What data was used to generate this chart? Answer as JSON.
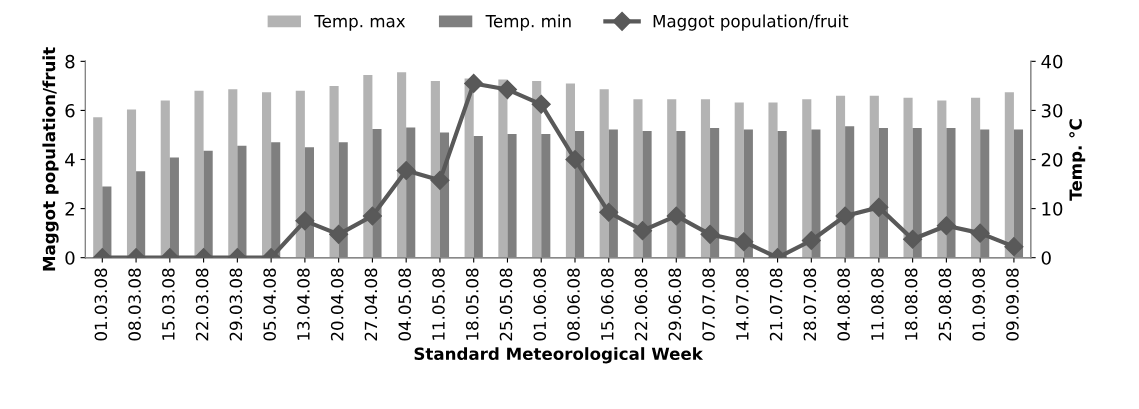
{
  "chart_data": {
    "type": "bar",
    "xlabel": "Standard Meteorological Week",
    "ylabel": "Maggot population/fruit",
    "y2label": "Temp. °C",
    "categories": [
      "01.03.08",
      "08.03.08",
      "15.03.08",
      "22.03.08",
      "29.03.08",
      "05.04.08",
      "13.04.08",
      "20.04.08",
      "27.04.08",
      "04.05.08",
      "11.05.08",
      "18.05.08",
      "25.05.08",
      "01.06.08",
      "08.06.08",
      "15.06.08",
      "22.06.08",
      "29.06.08",
      "07.07.08",
      "14.07.08",
      "21.07.08",
      "28.07.08",
      "04.08.08",
      "11.08.08",
      "18.08.08",
      "25.08.08",
      "01.09.08",
      "09.09.08"
    ],
    "series": [
      {
        "name": "Temp. max",
        "axis": "y2",
        "color": "#b3b3b3",
        "values": [
          28.6,
          30.2,
          32,
          34,
          34.3,
          33.7,
          34,
          35,
          37.2,
          37.8,
          36,
          36.5,
          36.3,
          36,
          35.5,
          34.3,
          32.3,
          32.3,
          32.3,
          31.6,
          31.6,
          32.3,
          33,
          33,
          32.6,
          32,
          32.6,
          33.7
        ]
      },
      {
        "name": "Temp. min",
        "axis": "y2",
        "color": "#7f7f7f",
        "values": [
          14.5,
          17.6,
          20.4,
          21.8,
          22.8,
          23.5,
          22.5,
          23.5,
          26.2,
          26.5,
          25.5,
          24.8,
          25.2,
          25.2,
          25.8,
          26.1,
          25.8,
          25.8,
          26.4,
          26.1,
          25.8,
          26.1,
          26.8,
          26.4,
          26.4,
          26.4,
          26.1,
          26.1
        ]
      },
      {
        "name": "Maggot population/fruit",
        "type": "line",
        "axis": "y",
        "color": "#595959",
        "values": [
          0,
          0,
          0,
          0,
          0,
          0,
          1.5,
          0.95,
          1.7,
          3.55,
          3.15,
          7.1,
          6.85,
          6.25,
          4.0,
          1.85,
          1.1,
          1.7,
          0.95,
          0.65,
          0,
          0.7,
          1.7,
          2.05,
          0.75,
          1.3,
          1.0,
          0.45
        ]
      }
    ],
    "ylim": [
      0,
      8
    ],
    "yticks": [
      0,
      2,
      4,
      6,
      8
    ],
    "y2lim": [
      0,
      40
    ],
    "y2ticks": [
      0,
      10,
      20,
      30,
      40
    ],
    "grid": false,
    "legend": "top",
    "marker": "diamond",
    "line_style": "solid"
  }
}
